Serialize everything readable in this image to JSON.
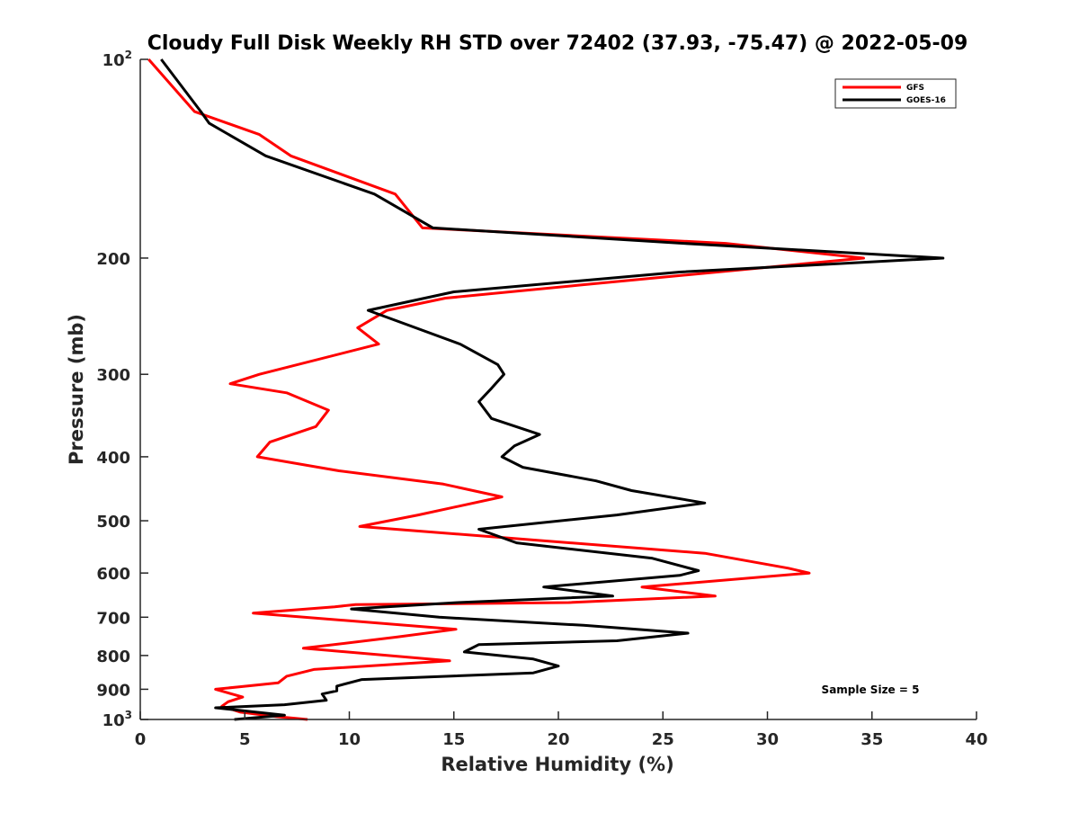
{
  "chart_data": {
    "type": "line",
    "title": "Cloudy Full Disk Weekly RH STD over 72402 (37.93, -75.47) @ 2022-05-09",
    "xlabel": "Relative Humidity (%)",
    "ylabel": "Pressure (mb)",
    "xlim": [
      0,
      40
    ],
    "ylim": [
      100,
      1000
    ],
    "y_scale": "log",
    "y_reversed": true,
    "grid": false,
    "legend_position": "top-right",
    "x_ticks": [
      "0",
      "5",
      "10",
      "15",
      "20",
      "25",
      "30",
      "35",
      "40"
    ],
    "y_ticks": [
      {
        "value": 100,
        "base": "10",
        "exp": "2"
      },
      {
        "value": 200,
        "label": "200"
      },
      {
        "value": 300,
        "label": "300"
      },
      {
        "value": 400,
        "label": "400"
      },
      {
        "value": 500,
        "label": "500"
      },
      {
        "value": 600,
        "label": "600"
      },
      {
        "value": 700,
        "label": "700"
      },
      {
        "value": 800,
        "label": "800"
      },
      {
        "value": 900,
        "label": "900"
      },
      {
        "value": 1000,
        "base": "10",
        "exp": "3"
      }
    ],
    "annotation": "Sample Size = 5",
    "series": [
      {
        "name": "GFS",
        "color": "#ff0000",
        "points": [
          [
            8.0,
            1000
          ],
          [
            6.5,
            990
          ],
          [
            4.8,
            975
          ],
          [
            3.9,
            955
          ],
          [
            4.2,
            940
          ],
          [
            4.9,
            925
          ],
          [
            3.6,
            900
          ],
          [
            6.6,
            880
          ],
          [
            7.0,
            860
          ],
          [
            8.3,
            840
          ],
          [
            14.8,
            815
          ],
          [
            7.8,
            780
          ],
          [
            12.3,
            750
          ],
          [
            15.1,
            730
          ],
          [
            5.4,
            690
          ],
          [
            9.3,
            675
          ],
          [
            10.3,
            670
          ],
          [
            20.5,
            665
          ],
          [
            27.5,
            650
          ],
          [
            24.0,
            630
          ],
          [
            32.0,
            600
          ],
          [
            31.0,
            590
          ],
          [
            27.0,
            560
          ],
          [
            10.5,
            510
          ],
          [
            13.3,
            490
          ],
          [
            17.3,
            460
          ],
          [
            14.5,
            440
          ],
          [
            9.5,
            420
          ],
          [
            5.6,
            400
          ],
          [
            6.2,
            380
          ],
          [
            8.4,
            360
          ],
          [
            9.0,
            340
          ],
          [
            7.0,
            320
          ],
          [
            4.3,
            310
          ],
          [
            5.7,
            300
          ],
          [
            11.4,
            270
          ],
          [
            10.4,
            255
          ],
          [
            11.8,
            240
          ],
          [
            14.6,
            230
          ],
          [
            20.9,
            220
          ],
          [
            34.6,
            200
          ],
          [
            28.0,
            190
          ],
          [
            13.5,
            180
          ],
          [
            12.2,
            160
          ],
          [
            7.2,
            140
          ],
          [
            5.7,
            130
          ],
          [
            2.6,
            120
          ],
          [
            0.4,
            100
          ]
        ]
      },
      {
        "name": "GOES-16",
        "color": "#000000",
        "points": [
          [
            4.5,
            1000
          ],
          [
            6.9,
            985
          ],
          [
            3.6,
            960
          ],
          [
            6.9,
            950
          ],
          [
            8.9,
            935
          ],
          [
            8.7,
            915
          ],
          [
            9.4,
            905
          ],
          [
            9.4,
            890
          ],
          [
            10.6,
            870
          ],
          [
            18.8,
            850
          ],
          [
            20.0,
            830
          ],
          [
            18.8,
            810
          ],
          [
            15.5,
            790
          ],
          [
            16.2,
            770
          ],
          [
            22.8,
            760
          ],
          [
            26.2,
            740
          ],
          [
            21.2,
            720
          ],
          [
            14.3,
            700
          ],
          [
            10.1,
            680
          ],
          [
            15.2,
            665
          ],
          [
            22.6,
            650
          ],
          [
            19.3,
            630
          ],
          [
            25.8,
            605
          ],
          [
            26.7,
            595
          ],
          [
            24.5,
            570
          ],
          [
            18.0,
            540
          ],
          [
            16.2,
            515
          ],
          [
            22.8,
            490
          ],
          [
            27.0,
            470
          ],
          [
            23.5,
            450
          ],
          [
            21.8,
            435
          ],
          [
            18.3,
            415
          ],
          [
            17.3,
            400
          ],
          [
            17.9,
            385
          ],
          [
            19.1,
            370
          ],
          [
            16.8,
            350
          ],
          [
            16.2,
            330
          ],
          [
            16.8,
            315
          ],
          [
            17.4,
            300
          ],
          [
            17.1,
            290
          ],
          [
            15.3,
            270
          ],
          [
            10.9,
            240
          ],
          [
            15.0,
            225
          ],
          [
            25.8,
            210
          ],
          [
            38.4,
            200
          ],
          [
            26.0,
            190
          ],
          [
            14.0,
            180
          ],
          [
            11.2,
            160
          ],
          [
            6.0,
            140
          ],
          [
            3.3,
            125
          ],
          [
            2.9,
            120
          ],
          [
            1.0,
            100
          ]
        ]
      }
    ]
  }
}
